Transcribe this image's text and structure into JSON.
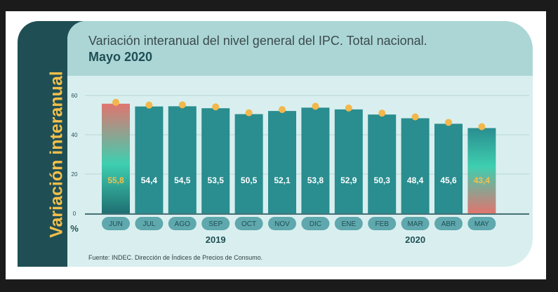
{
  "chart_data": {
    "type": "bar",
    "title": "Variación interanual del nivel general del IPC. Total nacional.",
    "subtitle": "Mayo 2020",
    "ylabel": "Variación interanual",
    "yunit": "%",
    "ylim": [
      0,
      60
    ],
    "yticks": [
      "0",
      "20",
      "40",
      "60"
    ],
    "grid": true,
    "categories": [
      "JUN",
      "JUL",
      "AGO",
      "SEP",
      "OCT",
      "NOV",
      "DIC",
      "ENE",
      "FEB",
      "MAR",
      "ABR",
      "MAY"
    ],
    "values": [
      55.8,
      54.4,
      54.5,
      53.5,
      50.5,
      52.1,
      53.8,
      52.9,
      50.3,
      48.4,
      45.6,
      43.4
    ],
    "value_labels": [
      "55,8",
      "54,4",
      "54,5",
      "53,5",
      "50,5",
      "52,1",
      "53,8",
      "52,9",
      "50,3",
      "48,4",
      "45,6",
      "43,4"
    ],
    "year_groups": [
      {
        "label": "2019",
        "from": 0,
        "to": 6
      },
      {
        "label": "2020",
        "from": 7,
        "to": 11
      }
    ],
    "highlight_indices": [
      0,
      11
    ],
    "source": "Fuente: INDEC. Dirección de Índices de Precios de Consumo."
  },
  "colors": {
    "bar": "#2a8d8f",
    "bar_dark": "#1f6f72",
    "highlight_top": "#e0756f",
    "highlight_mid": "#3ecfb0",
    "marker": "#f2b84b",
    "value_label": "#ffffff",
    "value_label_highlight": "#f3c24e",
    "pill": "#5fa8ad",
    "pill_text": "#1f4f55",
    "axis_text": "#1f4f55",
    "sidebar": "#1f4f55",
    "sidebar_text": "#f3bf4a"
  }
}
